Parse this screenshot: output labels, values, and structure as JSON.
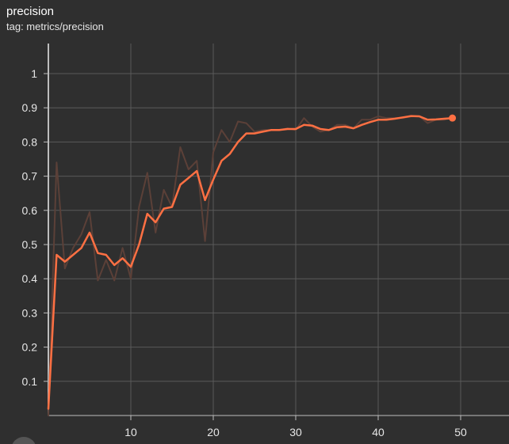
{
  "card": {
    "title": "precision",
    "tag": "tag: metrics/precision"
  },
  "colors": {
    "background": "#2f2f2f",
    "grid": "#5a5a5a",
    "axis": "#bdbdbd",
    "tick_text": "#e6e6e6",
    "smoothed_line": "#ff7043",
    "raw_line": "#5b4038"
  },
  "chart_data": {
    "type": "line",
    "title": "precision",
    "xlabel": "",
    "ylabel": "",
    "xlim": [
      0,
      55
    ],
    "ylim": [
      0,
      1.08
    ],
    "xticks": [
      10,
      20,
      30,
      40,
      50
    ],
    "yticks": [
      0.1,
      0.2,
      0.3,
      0.4,
      0.5,
      0.6,
      0.7,
      0.8,
      0.9,
      1
    ],
    "grid": true,
    "series": [
      {
        "role": "raw",
        "x": [
          0,
          1,
          2,
          3,
          4,
          5,
          6,
          7,
          8,
          9,
          10,
          11,
          12,
          13,
          14,
          15,
          16,
          17,
          18,
          19,
          20,
          21,
          22,
          23,
          24,
          25,
          26,
          27,
          28,
          29,
          30,
          31,
          32,
          33,
          34,
          35,
          36,
          37,
          38,
          39,
          40,
          41,
          42,
          43,
          44,
          45,
          46,
          47,
          48,
          49
        ],
        "y": [
          0.0,
          0.74,
          0.43,
          0.49,
          0.53,
          0.595,
          0.395,
          0.455,
          0.395,
          0.49,
          0.4,
          0.61,
          0.71,
          0.535,
          0.66,
          0.61,
          0.785,
          0.72,
          0.745,
          0.51,
          0.77,
          0.835,
          0.8,
          0.86,
          0.855,
          0.83,
          0.835,
          0.835,
          0.835,
          0.84,
          0.835,
          0.87,
          0.845,
          0.83,
          0.835,
          0.85,
          0.85,
          0.84,
          0.865,
          0.865,
          0.875,
          0.87,
          0.87,
          0.87,
          0.875,
          0.875,
          0.855,
          0.865,
          0.865,
          0.87
        ]
      },
      {
        "role": "smoothed",
        "x": [
          0,
          1,
          2,
          3,
          4,
          5,
          6,
          7,
          8,
          9,
          10,
          11,
          12,
          13,
          14,
          15,
          16,
          17,
          18,
          19,
          20,
          21,
          22,
          23,
          24,
          25,
          26,
          27,
          28,
          29,
          30,
          31,
          32,
          33,
          34,
          35,
          36,
          37,
          38,
          39,
          40,
          41,
          42,
          43,
          44,
          45,
          46,
          47,
          48,
          49
        ],
        "y": [
          0.02,
          0.47,
          0.45,
          0.47,
          0.49,
          0.535,
          0.475,
          0.47,
          0.44,
          0.46,
          0.435,
          0.5,
          0.59,
          0.565,
          0.605,
          0.61,
          0.675,
          0.695,
          0.715,
          0.63,
          0.69,
          0.745,
          0.765,
          0.8,
          0.825,
          0.825,
          0.83,
          0.835,
          0.835,
          0.838,
          0.838,
          0.85,
          0.848,
          0.838,
          0.835,
          0.843,
          0.845,
          0.84,
          0.85,
          0.858,
          0.865,
          0.865,
          0.868,
          0.872,
          0.876,
          0.875,
          0.865,
          0.866,
          0.868,
          0.87
        ]
      }
    ]
  }
}
